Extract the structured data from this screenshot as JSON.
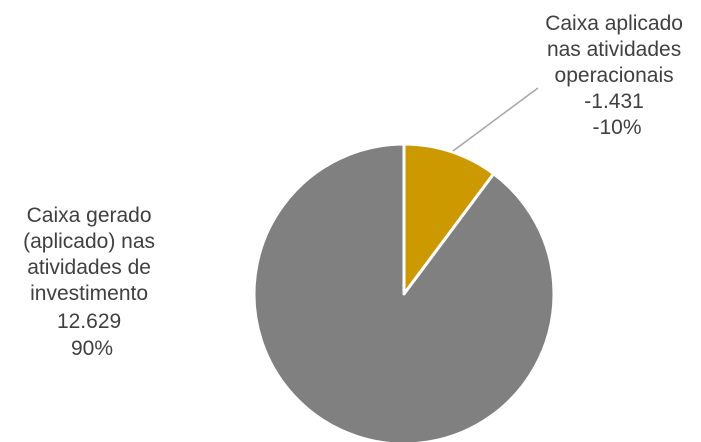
{
  "chart_data": {
    "type": "pie",
    "start_angle_deg": 0,
    "direction": "clockwise",
    "slices": [
      {
        "label_lines": [
          "Caixa aplicado",
          "nas atividades",
          "operacionais"
        ],
        "value_text": "-1.431",
        "percent_text": "-10%",
        "value": -1431,
        "share_percent": 10.2,
        "color": "#CC9900"
      },
      {
        "label_lines": [
          "Caixa gerado",
          "(aplicado) nas",
          "atividades de",
          "investimento"
        ],
        "value_text": "12.629",
        "percent_text": "90%",
        "value": 12629,
        "share_percent": 89.8,
        "color": "#808080"
      }
    ]
  }
}
